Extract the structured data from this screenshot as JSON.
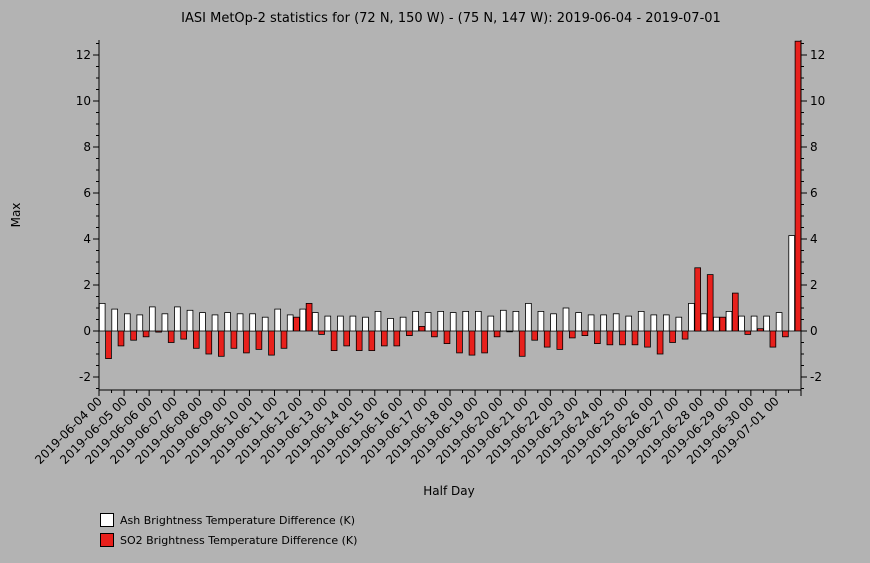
{
  "chart_data": {
    "type": "bar",
    "title": "IASI MetOp-2 statistics for (72 N, 150 W) - (75 N, 147 W): 2019-06-04 - 2019-07-01",
    "xlabel": "Half Day",
    "ylabel": "Max",
    "ylim": [
      -2.6,
      12.6
    ],
    "yticks": [
      -2,
      0,
      2,
      4,
      6,
      8,
      10,
      12
    ],
    "tick_labels": [
      "2019-06-04 00",
      "2019-06-05 00",
      "2019-06-06 00",
      "2019-06-07 00",
      "2019-06-08 00",
      "2019-06-09 00",
      "2019-06-10 00",
      "2019-06-11 00",
      "2019-06-12 00",
      "2019-06-13 00",
      "2019-06-14 00",
      "2019-06-15 00",
      "2019-06-16 00",
      "2019-06-17 00",
      "2019-06-18 00",
      "2019-06-19 00",
      "2019-06-20 00",
      "2019-06-21 00",
      "2019-06-22 00",
      "2019-06-23 00",
      "2019-06-24 00",
      "2019-06-25 00",
      "2019-06-26 00",
      "2019-06-27 00",
      "2019-06-28 00",
      "2019-06-29 00",
      "2019-06-30 00",
      "2019-07-01 00"
    ],
    "series": [
      {
        "name": "Ash Brightness Temperature Difference (K)",
        "color": "#ffffff",
        "values": [
          1.2,
          0.95,
          0.75,
          0.7,
          1.05,
          0.75,
          1.05,
          0.9,
          0.8,
          0.7,
          0.8,
          0.75,
          0.75,
          0.6,
          0.95,
          0.7,
          0.95,
          0.8,
          0.65,
          0.65,
          0.65,
          0.6,
          0.85,
          0.55,
          0.6,
          0.85,
          0.8,
          0.85,
          0.8,
          0.85,
          0.85,
          0.65,
          0.9,
          0.85,
          1.2,
          0.85,
          0.75,
          1.0,
          0.8,
          0.7,
          0.7,
          0.75,
          0.65,
          0.85,
          0.7,
          0.7,
          0.6,
          1.2,
          0.75,
          0.6,
          0.85,
          0.65,
          0.65,
          0.65,
          0.8,
          4.15
        ]
      },
      {
        "name": "SO2 Brightness Temperature Difference (K)",
        "color": "#e8201c",
        "values": [
          -1.2,
          -0.65,
          -0.4,
          -0.25,
          -0.05,
          -0.5,
          -0.35,
          -0.75,
          -1.0,
          -1.1,
          -0.75,
          -0.95,
          -0.8,
          -1.05,
          -0.75,
          0.6,
          1.2,
          -0.15,
          -0.85,
          -0.65,
          -0.85,
          -0.85,
          -0.65,
          -0.65,
          -0.2,
          0.2,
          -0.25,
          -0.55,
          -0.95,
          -1.05,
          -0.95,
          -0.25,
          0.0,
          -1.1,
          -0.4,
          -0.7,
          -0.8,
          -0.3,
          -0.2,
          -0.55,
          -0.6,
          -0.6,
          -0.6,
          -0.7,
          -1.0,
          -0.5,
          -0.35,
          2.75,
          2.45,
          0.6,
          1.65,
          -0.15,
          0.1,
          -0.7,
          -0.25,
          12.6
        ]
      }
    ]
  },
  "legend": {
    "ash_label": "Ash Brightness Temperature Difference (K)",
    "so2_label": "SO2 Brightness Temperature Difference (K)"
  }
}
